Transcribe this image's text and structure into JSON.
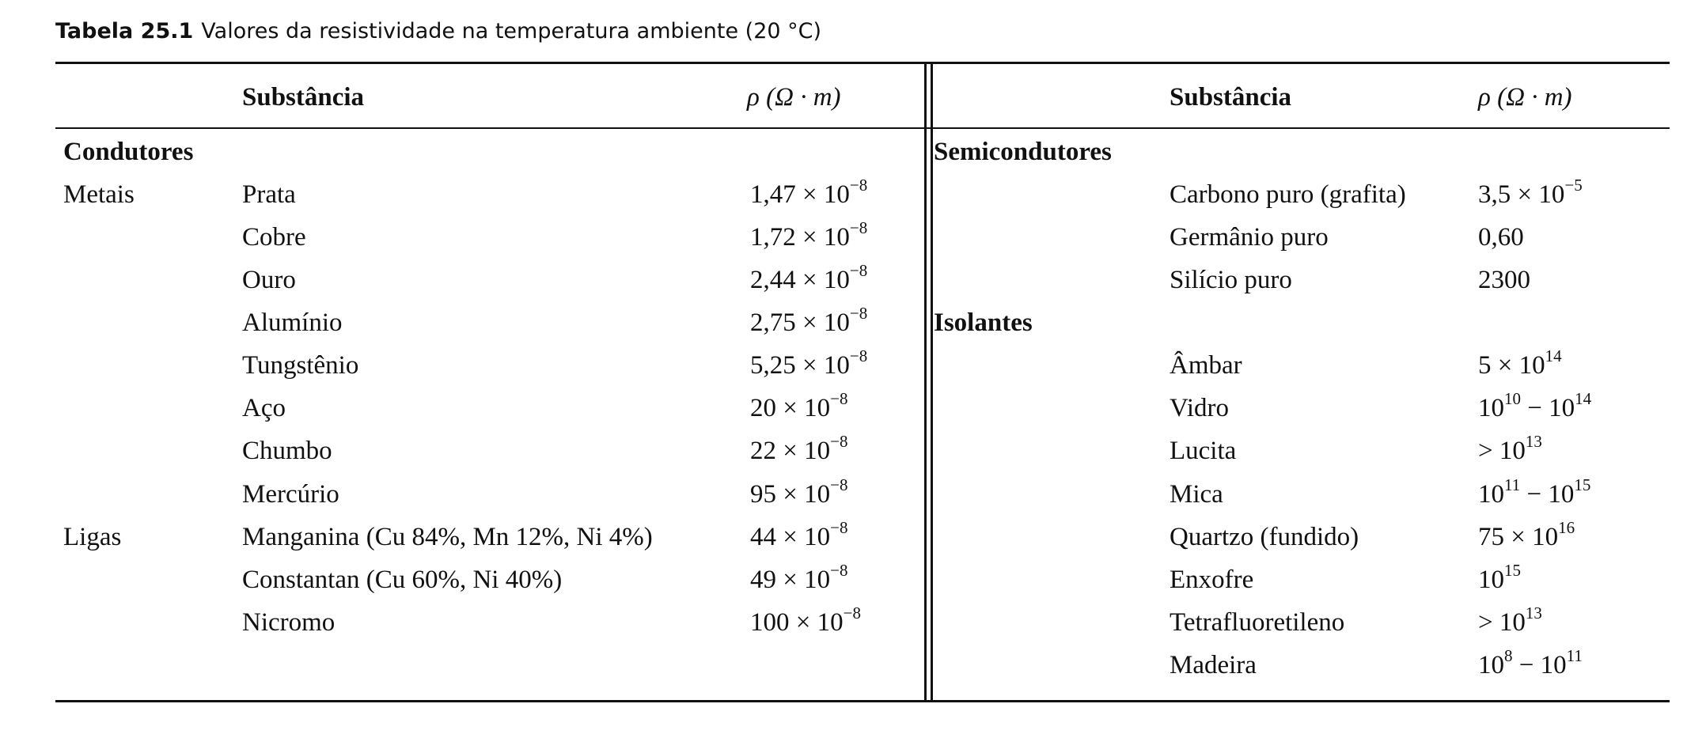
{
  "caption": {
    "label": "Tabela 25.1",
    "text": "Valores da resistividade na temperatura ambiente (20 °C)"
  },
  "headers": {
    "left_substance": "Substância",
    "left_rho": "ρ (Ω · m)",
    "right_substance": "Substância",
    "right_rho": "ρ (Ω · m)"
  },
  "left": {
    "category": "Condutores",
    "groups": [
      {
        "name": "Metais",
        "rows": [
          {
            "substance": "Prata",
            "base": "1,47 × 10",
            "exp": "−8"
          },
          {
            "substance": "Cobre",
            "base": "1,72 × 10",
            "exp": "−8"
          },
          {
            "substance": "Ouro",
            "base": "2,44 × 10",
            "exp": "−8"
          },
          {
            "substance": "Alumínio",
            "base": "2,75 × 10",
            "exp": "−8"
          },
          {
            "substance": "Tungstênio",
            "base": "5,25 × 10",
            "exp": "−8"
          },
          {
            "substance": "Aço",
            "base": "20 × 10",
            "exp": "−8"
          },
          {
            "substance": "Chumbo",
            "base": "22 × 10",
            "exp": "−8"
          },
          {
            "substance": "Mercúrio",
            "base": "95 × 10",
            "exp": "−8"
          }
        ]
      },
      {
        "name": "Ligas",
        "rows": [
          {
            "substance": "Manganina (Cu 84%, Mn 12%, Ni 4%)",
            "base": "44 × 10",
            "exp": "−8"
          },
          {
            "substance": "Constantan (Cu 60%, Ni 40%)",
            "base": "49 × 10",
            "exp": "−8"
          },
          {
            "substance": "Nicromo",
            "base": "100 × 10",
            "exp": "−8"
          }
        ]
      }
    ]
  },
  "right": {
    "semiconductors": {
      "category": "Semicondutores",
      "rows": [
        {
          "substance": "Carbono puro (grafita)",
          "parts": [
            "3,5 × 10",
            "−5"
          ]
        },
        {
          "substance": "Germânio puro",
          "parts": [
            "0,60"
          ]
        },
        {
          "substance": "Silício puro",
          "parts": [
            "2300"
          ]
        }
      ]
    },
    "insulators": {
      "category": "Isolantes",
      "rows": [
        {
          "substance": "Âmbar",
          "parts": [
            "5 × 10",
            "14"
          ]
        },
        {
          "substance": "Vidro",
          "parts": [
            "10",
            "10",
            " − 10",
            "14"
          ]
        },
        {
          "substance": "Lucita",
          "parts": [
            "> 10",
            "13"
          ]
        },
        {
          "substance": "Mica",
          "parts": [
            "10",
            "11",
            " − 10",
            "15"
          ]
        },
        {
          "substance": "Quartzo (fundido)",
          "parts": [
            "75 × 10",
            "16"
          ]
        },
        {
          "substance": "Enxofre",
          "parts": [
            "10",
            "15"
          ]
        },
        {
          "substance": "Tetrafluoretileno",
          "parts": [
            "> 10",
            "13"
          ]
        },
        {
          "substance": "Madeira",
          "parts": [
            "10",
            "8",
            " − 10",
            "11"
          ]
        }
      ]
    }
  }
}
